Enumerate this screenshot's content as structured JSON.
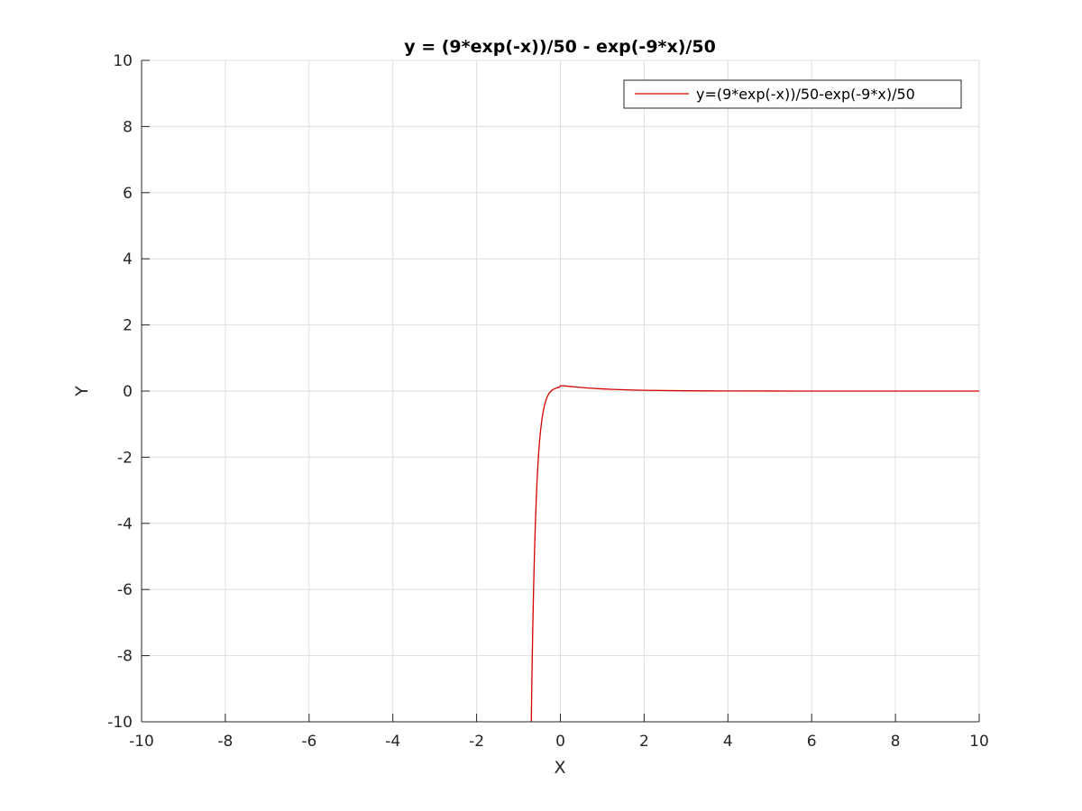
{
  "chart_data": {
    "type": "line",
    "title": "y = (9*exp(-x))/50 - exp(-9*x)/50",
    "xlabel": "X",
    "ylabel": "Y",
    "xlim": [
      -10,
      10
    ],
    "ylim": [
      -10,
      10
    ],
    "xticks": [
      -10,
      -8,
      -6,
      -4,
      -2,
      0,
      2,
      4,
      6,
      8,
      10
    ],
    "yticks": [
      -10,
      -8,
      -6,
      -4,
      -2,
      0,
      2,
      4,
      6,
      8,
      10
    ],
    "grid": true,
    "legend_position": "top-right",
    "series": [
      {
        "name": "y=(9*exp(-x))/50-exp(-9*x)/50",
        "color": "#d40000",
        "x": [
          -0.72,
          -0.7,
          -0.68,
          -0.66,
          -0.64,
          -0.62,
          -0.6,
          -0.58,
          -0.56,
          -0.54,
          -0.52,
          -0.5,
          -0.48,
          -0.46,
          -0.44,
          -0.42,
          -0.4,
          -0.38,
          -0.36,
          -0.34,
          -0.32,
          -0.3,
          -0.28,
          -0.26,
          -0.24,
          -0.22,
          -0.2,
          -0.18,
          -0.16,
          -0.14,
          -0.12,
          -0.1,
          -0.08,
          -0.06,
          -0.04,
          -0.02,
          0,
          0.05,
          0.1,
          0.15,
          0.2,
          0.25,
          0.3,
          0.35,
          0.4,
          0.5,
          0.6,
          0.7,
          0.8,
          0.9,
          1,
          1.25,
          1.5,
          1.75,
          2,
          2.5,
          3,
          3.5,
          4,
          5,
          6,
          7,
          8,
          9,
          10
        ],
        "y": [
          -12.63,
          -10.48,
          -8.7,
          -7.22,
          -5.99,
          -4.96,
          -4.11,
          -3.4,
          -2.81,
          -2.31,
          -1.91,
          -1.56,
          -1.28,
          -1.05,
          -0.85,
          -0.69,
          -0.55,
          -0.43,
          -0.34,
          -0.26,
          -0.19,
          -0.14,
          -0.09,
          -0.05,
          -0.02,
          0.0,
          0.03,
          0.04,
          0.06,
          0.07,
          0.08,
          0.09,
          0.1,
          0.11,
          0.11,
          0.12,
          0.16,
          0.161,
          0.158,
          0.151,
          0.144,
          0.138,
          0.132,
          0.126,
          0.12,
          0.109,
          0.099,
          0.089,
          0.081,
          0.073,
          0.066,
          0.052,
          0.04,
          0.031,
          0.024,
          0.015,
          0.009,
          0.005,
          0.003,
          0.001,
          0.0,
          0.0,
          0.0,
          0.0,
          0.0
        ]
      }
    ]
  }
}
